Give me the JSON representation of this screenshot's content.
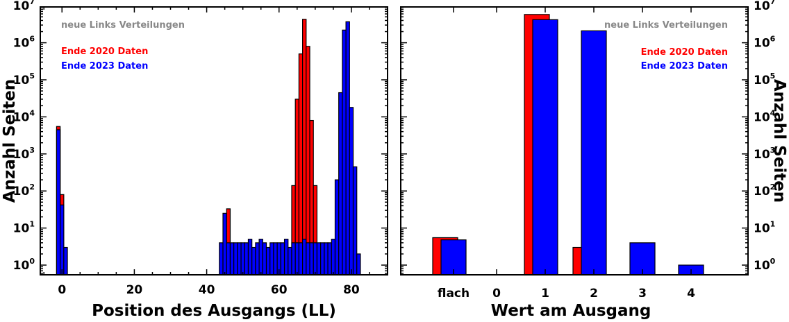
{
  "colors": {
    "red": "#ff0000",
    "blue": "#0000ff"
  },
  "chart_data": [
    {
      "type": "bar",
      "xlabel": "Position des Ausgangs (LL)",
      "ylabel": "Anzahl Seiten",
      "yscale": "log",
      "ylim": [
        0.5,
        10000000
      ],
      "xlim": [
        -6,
        90
      ],
      "xticks": [
        "0",
        "20",
        "40",
        "60",
        "80"
      ],
      "yticks": [
        "10",
        "10",
        "10",
        "10",
        "10",
        "10",
        "10",
        "10"
      ],
      "ytick_exponents": [
        "0",
        "1",
        "2",
        "3",
        "4",
        "5",
        "6",
        "7"
      ],
      "legend_title": "neue Links Verteilungen",
      "legend_position": "top-left",
      "series": [
        {
          "name": "Ende 2020 Daten",
          "color": "#ff0000",
          "points": [
            [
              -1,
              5500
            ],
            [
              0,
              80
            ],
            [
              46,
              33
            ],
            [
              64,
              140
            ],
            [
              65,
              30000
            ],
            [
              66,
              500000
            ],
            [
              67,
              4300000
            ],
            [
              68,
              800000
            ],
            [
              69,
              8000
            ],
            [
              70,
              140
            ]
          ]
        },
        {
          "name": "Ende 2023 Daten",
          "color": "#0000ff",
          "points": [
            [
              -1,
              4500
            ],
            [
              0,
              42
            ],
            [
              1,
              3
            ],
            [
              44,
              4
            ],
            [
              45,
              25
            ],
            [
              46,
              4
            ],
            [
              47,
              4
            ],
            [
              48,
              4
            ],
            [
              49,
              4
            ],
            [
              50,
              4
            ],
            [
              51,
              4
            ],
            [
              52,
              5
            ],
            [
              53,
              3
            ],
            [
              54,
              4
            ],
            [
              55,
              5
            ],
            [
              56,
              4
            ],
            [
              57,
              3
            ],
            [
              58,
              4
            ],
            [
              59,
              4
            ],
            [
              60,
              4
            ],
            [
              61,
              4
            ],
            [
              62,
              5
            ],
            [
              63,
              3
            ],
            [
              64,
              4
            ],
            [
              65,
              4
            ],
            [
              66,
              4
            ],
            [
              67,
              5
            ],
            [
              68,
              4
            ],
            [
              69,
              4
            ],
            [
              70,
              4
            ],
            [
              71,
              4
            ],
            [
              72,
              4
            ],
            [
              73,
              4
            ],
            [
              74,
              4
            ],
            [
              75,
              5
            ],
            [
              76,
              200
            ],
            [
              77,
              45000
            ],
            [
              78,
              2200000
            ],
            [
              79,
              3700000
            ],
            [
              80,
              18000
            ],
            [
              81,
              450
            ],
            [
              82,
              2
            ]
          ]
        }
      ]
    },
    {
      "type": "bar",
      "xlabel": "Wert am Ausgang",
      "ylabel": "Anzahl Seiten",
      "yscale": "log",
      "ylim": [
        0.5,
        10000000
      ],
      "categories": [
        "flach",
        "0",
        "1",
        "2",
        "3",
        "4"
      ],
      "yticks": [
        "10",
        "10",
        "10",
        "10",
        "10",
        "10",
        "10",
        "10"
      ],
      "ytick_exponents": [
        "0",
        "1",
        "2",
        "3",
        "4",
        "5",
        "6",
        "7"
      ],
      "legend_title": "neue Links Verteilungen",
      "legend_position": "top-right",
      "series": [
        {
          "name": "Ende 2020 Daten",
          "color": "#ff0000",
          "values": [
            5.5,
            null,
            5800000,
            3,
            null,
            null
          ]
        },
        {
          "name": "Ende 2023 Daten",
          "color": "#0000ff",
          "values": [
            4.8,
            null,
            4200000,
            2100000,
            4,
            1
          ]
        }
      ]
    }
  ]
}
